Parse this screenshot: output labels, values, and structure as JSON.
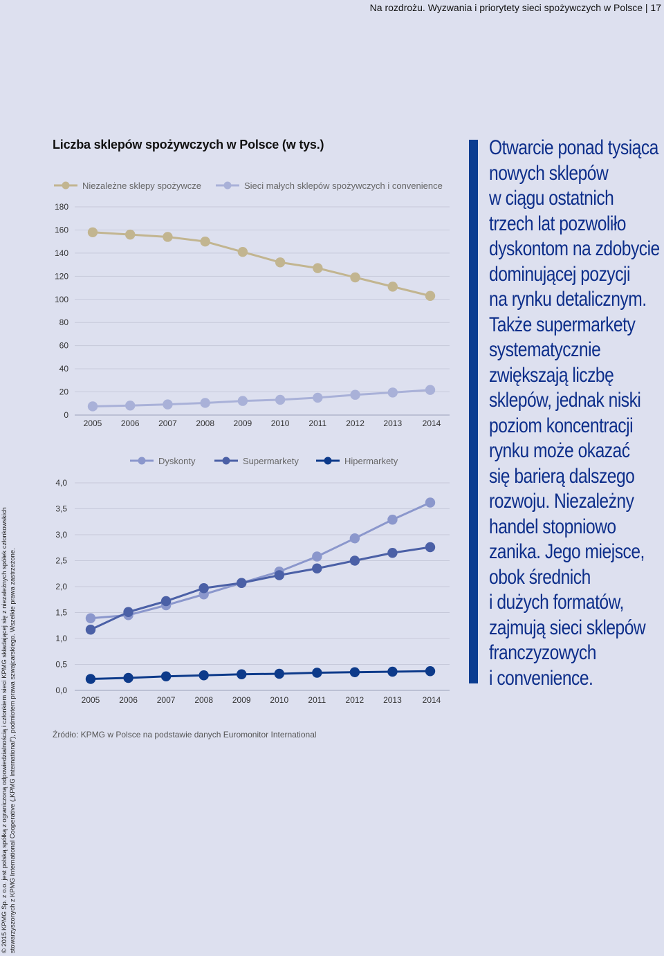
{
  "header": {
    "text": "Na rozdrożu. Wyzwania i priorytety sieci spożywczych w Polsce | 17"
  },
  "sidebar": {
    "lines": [
      "© 2015 KPMG Sp. z o.o. jest polską spółką z ograniczoną odpowiedzialnością i członkiem sieci KPMG składającej się z niezależnych spółek członkowskich",
      "stowarzyszonych z KPMG International Cooperative („KPMG International”), podmiotem prawa szwajcarskiego. Wszelkie prawa zastrzeżone."
    ]
  },
  "title": "Liczba sklepów spożywczych w Polsce (w tys.)",
  "source": "Źródło: KPMG w Polsce na podstawie danych Euromonitor International",
  "quote": {
    "lines": [
      "Otwarcie ponad tysiąca",
      "nowych sklepów",
      "w ciągu ostatnich",
      "trzech lat pozwoliło",
      "dyskontom na zdobycie",
      "dominującej pozycji",
      "na rynku detalicznym.",
      "Także supermarkety",
      "systematycznie",
      "zwiększają liczbę",
      "sklepów, jednak niski",
      "poziom koncentracji",
      "rynku może okazać",
      "się barierą dalszego",
      "rozwoju. Niezależny",
      "handel stopniowo",
      "zanika. Jego miejsce,",
      "obok średnich",
      "i dużych formatów,",
      "zajmują sieci sklepów",
      "franczyzowych",
      "i convenience."
    ]
  },
  "colors": {
    "niezalezne": "#c2b590",
    "sieci_male": "#a9b1d8",
    "dyskonty": "#8b97cc",
    "supermarkety": "#4b60a6",
    "hipermarkety": "#0d3a8a",
    "grid": "#c6c9da",
    "axis": "#9aa0b8"
  },
  "chart_data": [
    {
      "type": "line",
      "title": "",
      "x": [
        "2005",
        "2006",
        "2007",
        "2008",
        "2009",
        "2010",
        "2011",
        "2012",
        "2013",
        "2014"
      ],
      "y_ticks": [
        "0",
        "20",
        "40",
        "60",
        "80",
        "100",
        "120",
        "140",
        "160",
        "180"
      ],
      "ylim": [
        0,
        180
      ],
      "grid": true,
      "legend": "top",
      "series": [
        {
          "name": "Niezależne sklepy spożywcze",
          "color_key": "niezalezne",
          "values": [
            158,
            156,
            154,
            150,
            141,
            132,
            127,
            119,
            111,
            103
          ]
        },
        {
          "name": "Sieci małych sklepów spożywczych i convenience",
          "color_key": "sieci_male",
          "values": [
            7.5,
            8.2,
            9.2,
            10.5,
            12.2,
            13.2,
            15.0,
            17.5,
            19.5,
            21.7
          ]
        }
      ]
    },
    {
      "type": "line",
      "title": "",
      "x": [
        "2005",
        "2006",
        "2007",
        "2008",
        "2009",
        "2010",
        "2011",
        "2012",
        "2013",
        "2014"
      ],
      "y_ticks": [
        "0,0",
        "0,5",
        "1,0",
        "1,5",
        "2,0",
        "2,5",
        "3,0",
        "3,5",
        "4,0"
      ],
      "ylim": [
        0,
        4
      ],
      "grid": true,
      "legend": "top",
      "series": [
        {
          "name": "Dyskonty",
          "color_key": "dyskonty",
          "values": [
            1.39,
            1.45,
            1.64,
            1.85,
            2.07,
            2.29,
            2.58,
            2.93,
            3.29,
            3.62
          ]
        },
        {
          "name": "Supermarkety",
          "color_key": "supermarkety",
          "values": [
            1.17,
            1.51,
            1.72,
            1.97,
            2.07,
            2.22,
            2.35,
            2.5,
            2.65,
            2.76
          ]
        },
        {
          "name": "Hipermarkety",
          "color_key": "hipermarkety",
          "values": [
            0.22,
            0.24,
            0.27,
            0.29,
            0.31,
            0.32,
            0.34,
            0.35,
            0.36,
            0.37
          ]
        }
      ]
    }
  ]
}
